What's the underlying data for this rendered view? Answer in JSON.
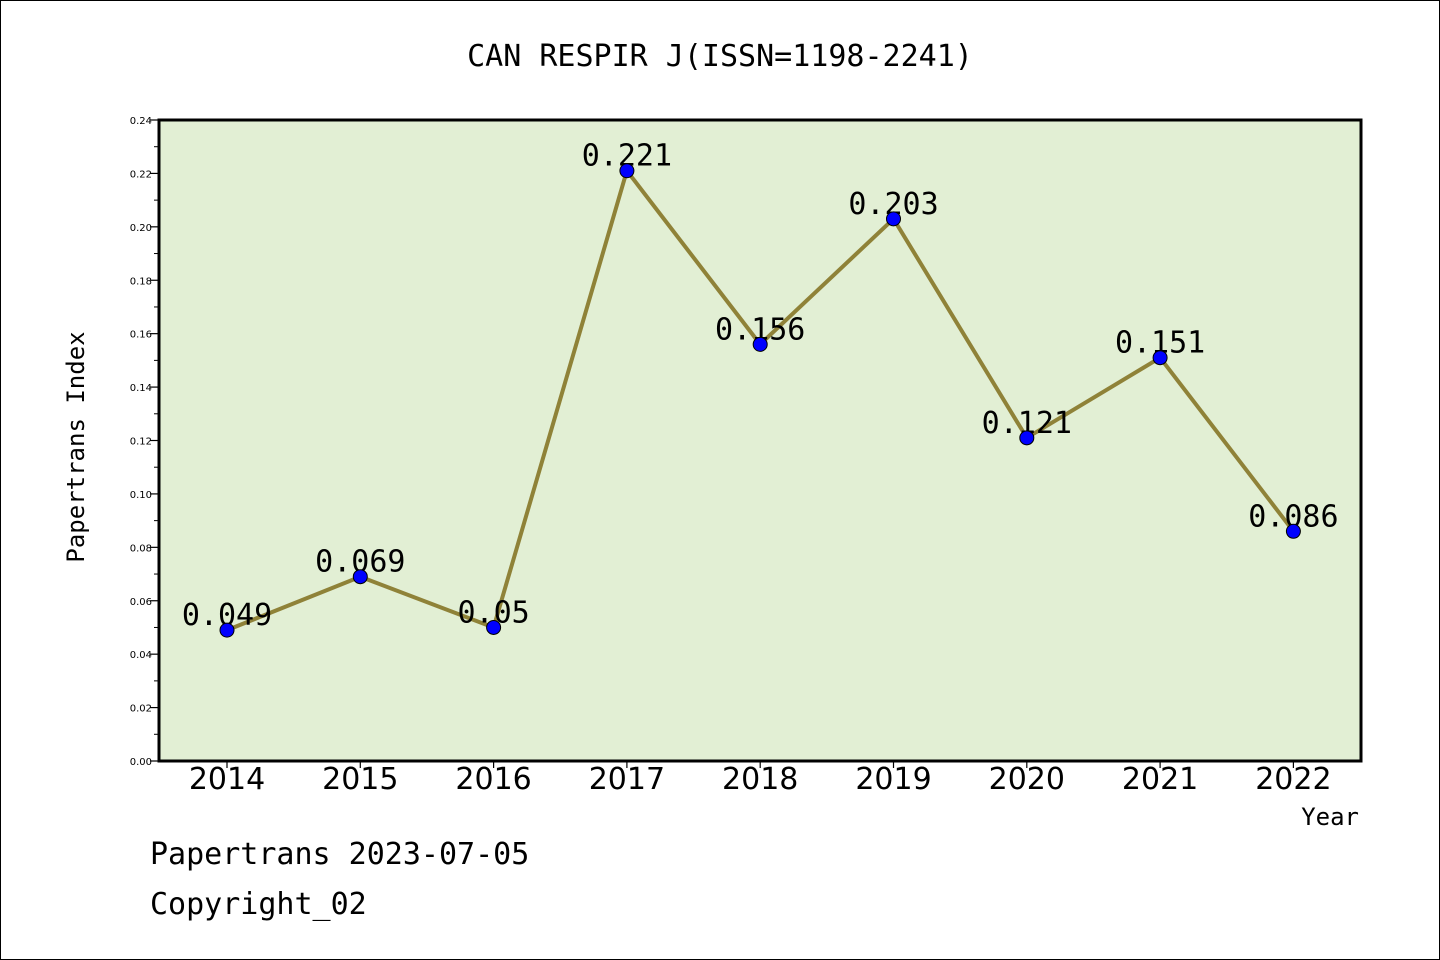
{
  "chart_data": {
    "type": "line",
    "title": "CAN RESPIR J(ISSN=1198-2241)",
    "xlabel": "Year",
    "ylabel": "Papertrans Index",
    "categories": [
      "2014",
      "2015",
      "2016",
      "2017",
      "2018",
      "2019",
      "2020",
      "2021",
      "2022"
    ],
    "series": [
      {
        "values": [
          0.049,
          0.069,
          0.05,
          0.221,
          0.156,
          0.203,
          0.121,
          0.151,
          0.086
        ],
        "data_labels": [
          "0.049",
          "0.069",
          "0.05",
          "0.221",
          "0.156",
          "0.203",
          "0.121",
          "0.151",
          "0.086"
        ]
      }
    ],
    "ylim": [
      0,
      0.24
    ],
    "yticks": [
      "0.00",
      "0.02",
      "0.04",
      "0.06",
      "0.08",
      "0.10",
      "0.12",
      "0.14",
      "0.16",
      "0.18",
      "0.20",
      "0.22",
      "0.24"
    ],
    "grid": false,
    "legend": "none",
    "colors": {
      "plot_background": "#e2efd4",
      "line": "#8f8238",
      "marker": "#0000ff"
    }
  },
  "footer": {
    "source_line": "Papertrans 2023-07-05",
    "copyright": "Copyright_02"
  }
}
